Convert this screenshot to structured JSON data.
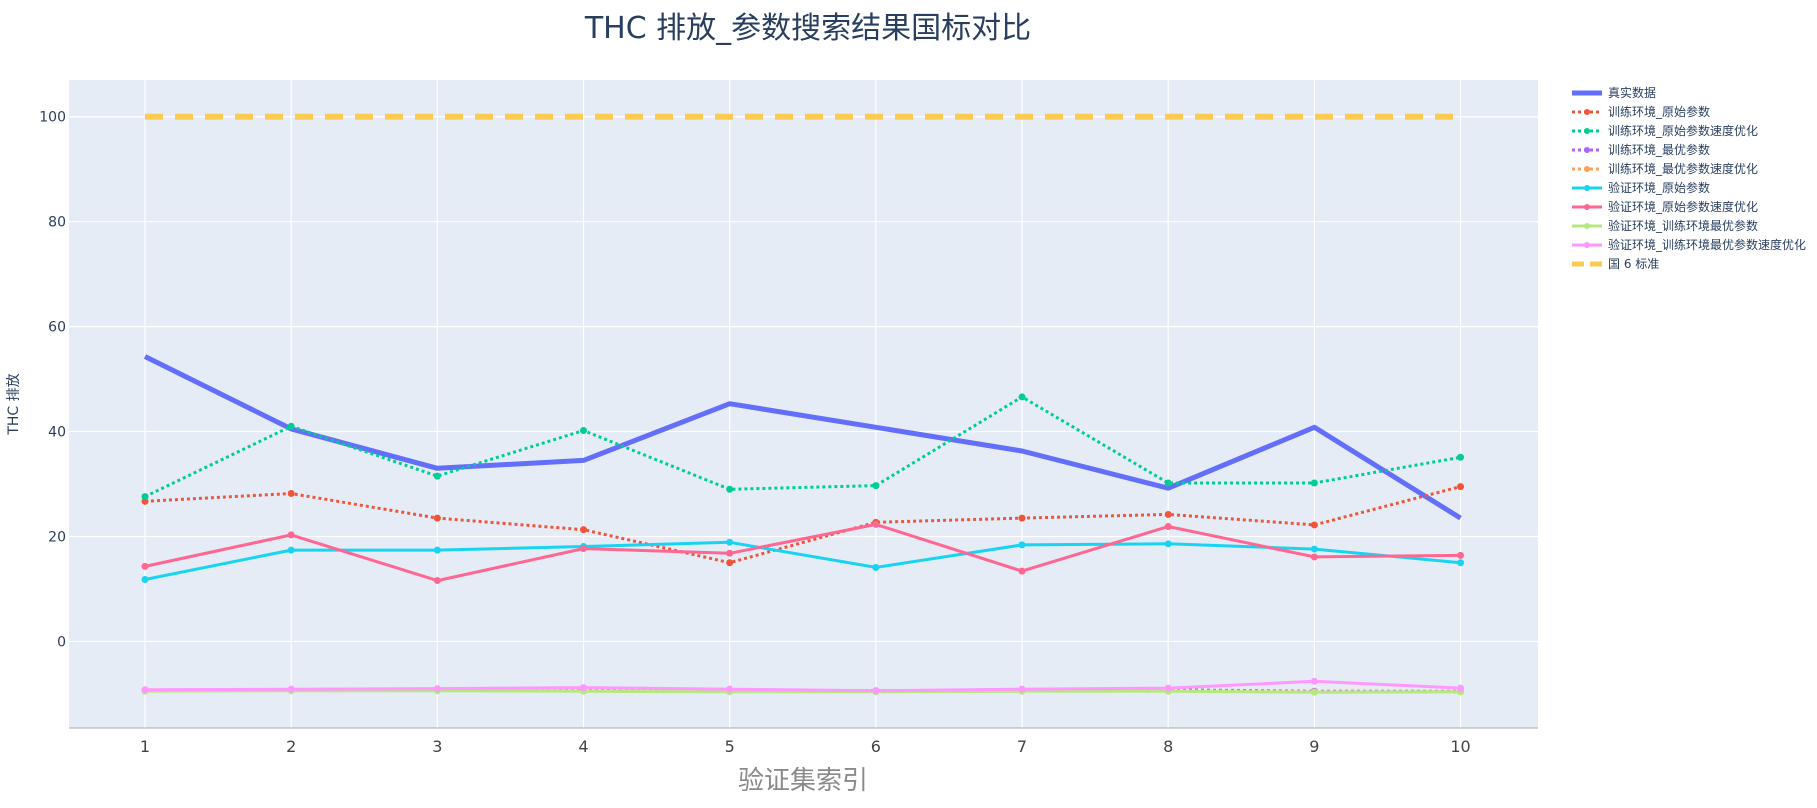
{
  "chart_data": {
    "type": "line",
    "title": "THC 排放_参数搜索结果国标对比",
    "xlabel": "验证集索引",
    "ylabel": "THC 排放",
    "x": [
      1,
      2,
      3,
      4,
      5,
      6,
      7,
      8,
      9,
      10
    ],
    "x_tick_labels": [
      "1",
      "2",
      "3",
      "4",
      "5",
      "6",
      "7",
      "8",
      "9",
      "10"
    ],
    "yticks": [
      0,
      20,
      40,
      60,
      80,
      100
    ],
    "y_tick_labels": [
      "0",
      "20",
      "40",
      "60",
      "80",
      "100"
    ],
    "xlim": [
      0.48,
      10.53
    ],
    "ylim": [
      -16.5,
      107
    ],
    "grid": true,
    "legend_position": "right",
    "plot_background": "#E5ECF6",
    "series": [
      {
        "name": "真实数据",
        "color": "#636EFA",
        "dash": "solid",
        "markers": false,
        "width": 5,
        "values": [
          54.3,
          40.5,
          33.0,
          34.5,
          45.3,
          40.8,
          36.3,
          29.2,
          40.8,
          23.5
        ]
      },
      {
        "name": "训练环境_原始参数",
        "color": "#EF553B",
        "dash": "dot",
        "markers": true,
        "width": 3,
        "values": [
          26.7,
          28.2,
          23.5,
          21.3,
          15.0,
          22.7,
          23.5,
          24.2,
          22.2,
          29.5
        ]
      },
      {
        "name": "训练环境_原始参数速度优化",
        "color": "#00CC96",
        "dash": "dot",
        "markers": true,
        "width": 3,
        "values": [
          27.6,
          41.0,
          31.5,
          40.2,
          29.0,
          29.7,
          46.6,
          30.2,
          30.2,
          35.1
        ]
      },
      {
        "name": "训练环境_最优参数",
        "color": "#AB63FA",
        "dash": "dot",
        "markers": true,
        "width": 3,
        "values": [
          -9.3,
          -9.2,
          -9.1,
          -9.2,
          -9.3,
          -9.4,
          -9.3,
          -9.2,
          -9.5,
          -9.5
        ]
      },
      {
        "name": "训练环境_最优参数速度优化",
        "color": "#FFA15A",
        "dash": "dot",
        "markers": true,
        "width": 3,
        "values": [
          -9.4,
          -9.3,
          -9.3,
          -9.4,
          -9.4,
          -9.5,
          -9.4,
          -9.4,
          -9.6,
          -9.6
        ]
      },
      {
        "name": "验证环境_原始参数",
        "color": "#19D3F3",
        "dash": "solid",
        "markers": true,
        "width": 3,
        "values": [
          11.8,
          17.4,
          17.4,
          18.1,
          18.9,
          14.1,
          18.4,
          18.6,
          17.6,
          15.0
        ]
      },
      {
        "name": "验证环境_原始参数速度优化",
        "color": "#FF6692",
        "dash": "solid",
        "markers": true,
        "width": 3,
        "values": [
          14.3,
          20.3,
          11.6,
          17.7,
          16.8,
          22.3,
          13.4,
          21.9,
          16.1,
          16.4
        ]
      },
      {
        "name": "验证环境_训练环境最优参数",
        "color": "#B6E880",
        "dash": "solid",
        "markers": true,
        "width": 3,
        "values": [
          -9.5,
          -9.4,
          -9.4,
          -9.5,
          -9.6,
          -9.6,
          -9.5,
          -9.5,
          -9.7,
          -9.6
        ]
      },
      {
        "name": "验证环境_训练环境最优参数速度优化",
        "color": "#FF97FF",
        "dash": "solid",
        "markers": true,
        "width": 3,
        "values": [
          -9.2,
          -9.1,
          -9.0,
          -8.8,
          -9.1,
          -9.4,
          -9.1,
          -8.9,
          -7.6,
          -8.9
        ]
      },
      {
        "name": "国 6 标准",
        "color": "#FECB52",
        "dash": "dash",
        "markers": false,
        "width": 6,
        "values": [
          100,
          100,
          100,
          100,
          100,
          100,
          100,
          100,
          100,
          100
        ]
      }
    ]
  }
}
